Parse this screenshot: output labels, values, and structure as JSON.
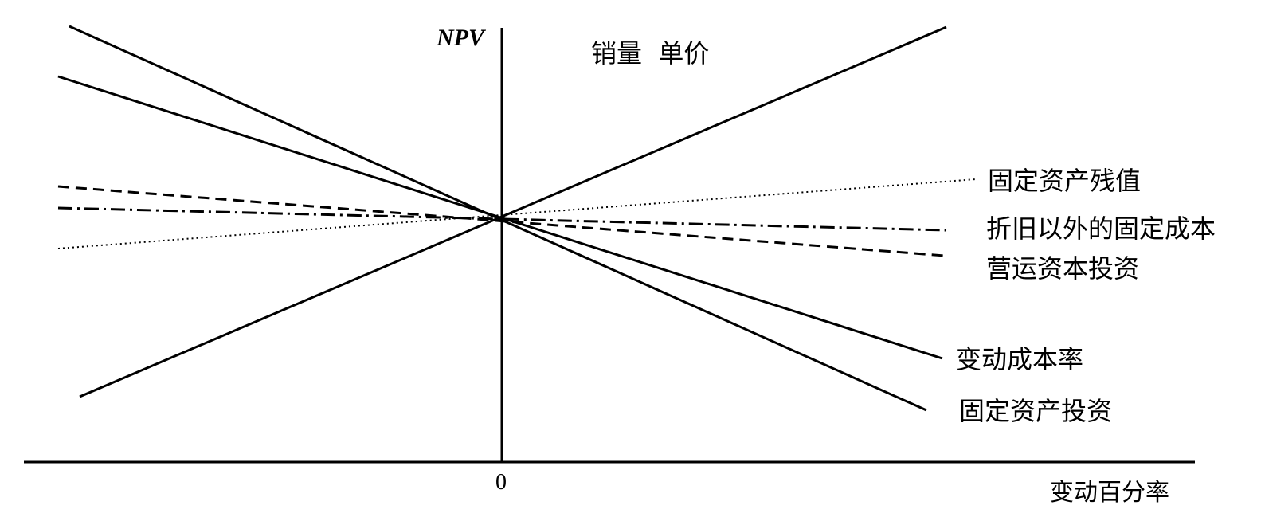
{
  "axes": {
    "y_label": "NPV",
    "x_label": "变动百分率",
    "origin_label": "0"
  },
  "lines": [
    {
      "id": "sales-price",
      "label": "销量  单价",
      "style": "solid"
    },
    {
      "id": "residual",
      "label": "固定资产残值",
      "style": "dotted"
    },
    {
      "id": "fixed-cost",
      "label": "折旧以外的固定成本",
      "style": "dashdot"
    },
    {
      "id": "working-capital",
      "label": "营运资本投资",
      "style": "dashed"
    },
    {
      "id": "variable-cost",
      "label": "变动成本率",
      "style": "solid"
    },
    {
      "id": "fixed-asset-inv",
      "label": "固定资产投资",
      "style": "solid"
    }
  ]
}
